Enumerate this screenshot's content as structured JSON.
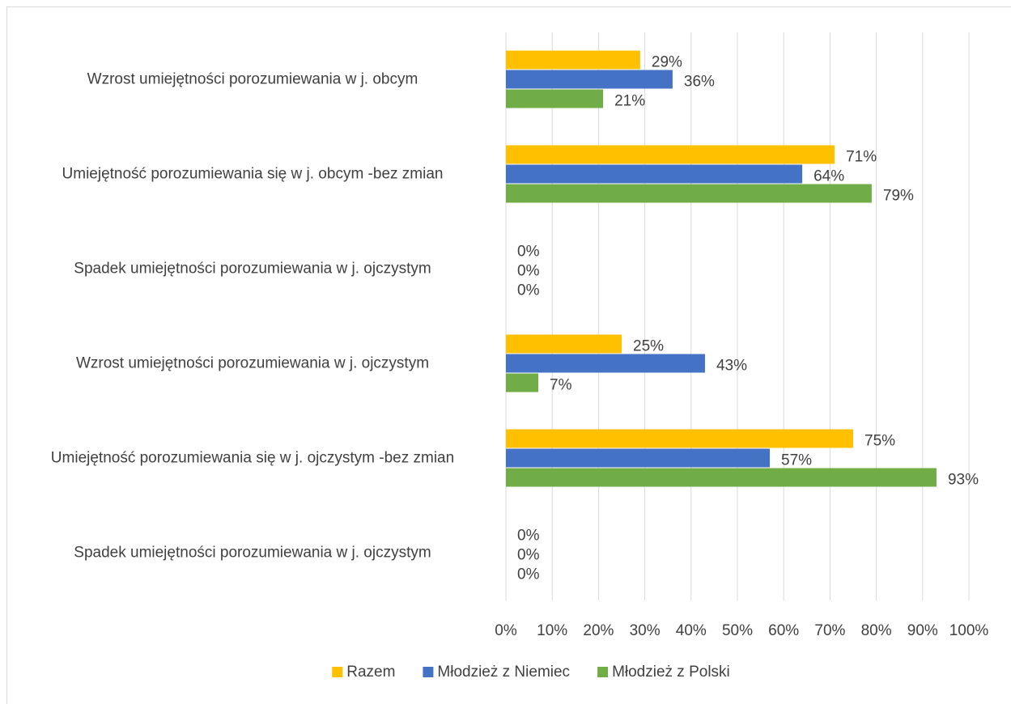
{
  "chart_data": {
    "type": "barh",
    "categories": [
      "Wzrost umiejętności porozumiewania w j. obcym",
      "Umiejętność porozumiewania się w j. obcym -bez zmian",
      "Spadek umiejętności porozumiewania w j. ojczystym",
      "Wzrost umiejętności porozumiewania w j. ojczystym",
      "Umiejętność porozumiewania się w j. ojczystym -bez zmian",
      "Spadek umiejętności porozumiewania w j. ojczystym"
    ],
    "series": [
      {
        "name": "Razem",
        "color": "#ffc000",
        "values": [
          29,
          71,
          0,
          25,
          75,
          0
        ],
        "value_labels": [
          "29%",
          "71%",
          "0%",
          "25%",
          "75%",
          "0%"
        ]
      },
      {
        "name": "Młodzież z Niemiec",
        "color": "#4472c4",
        "values": [
          36,
          64,
          0,
          43,
          57,
          0
        ],
        "value_labels": [
          "36%",
          "64%",
          "0%",
          "43%",
          "57%",
          "0%"
        ]
      },
      {
        "name": "Młodzież z Polski",
        "color": "#70ad47",
        "values": [
          21,
          79,
          0,
          7,
          93,
          0
        ],
        "value_labels": [
          "21%",
          "79%",
          "0%",
          "7%",
          "93%",
          "0%"
        ]
      }
    ],
    "xlim": [
      0,
      100
    ],
    "xticks": [
      {
        "value": 0,
        "label": "0%"
      },
      {
        "value": 10,
        "label": "10%"
      },
      {
        "value": 20,
        "label": "20%"
      },
      {
        "value": 30,
        "label": "30%"
      },
      {
        "value": 40,
        "label": "40%"
      },
      {
        "value": 50,
        "label": "50%"
      },
      {
        "value": 60,
        "label": "60%"
      },
      {
        "value": 70,
        "label": "70%"
      },
      {
        "value": 80,
        "label": "80%"
      },
      {
        "value": 90,
        "label": "90%"
      },
      {
        "value": 100,
        "label": "100%"
      }
    ],
    "grid": true,
    "legend": "bottom"
  }
}
